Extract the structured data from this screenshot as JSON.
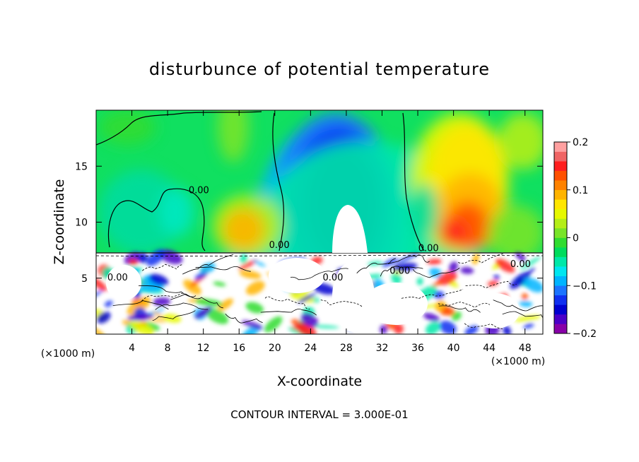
{
  "chart_data": {
    "type": "heatmap",
    "title": "disturbunce of potential temperature",
    "xlabel": "X-coordinate",
    "ylabel": "Z-coordinate",
    "x_unit_left": "(×1000 m)",
    "x_unit_right": "(×1000 m)",
    "xlim": [
      0,
      50
    ],
    "ylim": [
      0,
      20
    ],
    "xticks": [
      4,
      8,
      12,
      16,
      20,
      24,
      28,
      32,
      36,
      40,
      44,
      48
    ],
    "yticks": [
      5,
      10,
      15
    ],
    "colorbar": {
      "range": [
        -0.2,
        0.2
      ],
      "ticks": [
        {
          "value": 0.2,
          "label": "0.2"
        },
        {
          "value": 0.1,
          "label": "0.1"
        },
        {
          "value": 0,
          "label": "0"
        },
        {
          "value": -0.1,
          "label": "−0.1"
        },
        {
          "value": -0.2,
          "label": "−0.2"
        }
      ],
      "colors": [
        "#8800a8",
        "#4b00c8",
        "#0000d0",
        "#1030f0",
        "#1c74ff",
        "#00b4ff",
        "#00e6f0",
        "#00e8a8",
        "#00dc5c",
        "#30dc30",
        "#78e428",
        "#b4ee18",
        "#e6f800",
        "#ffe600",
        "#ffb400",
        "#ff8200",
        "#ff5000",
        "#ff1e1e",
        "#f06464",
        "#ffa0a0"
      ]
    },
    "contour_labels": [
      {
        "text": "0.00",
        "x": 11.5,
        "z": 12.6
      },
      {
        "text": "0.00",
        "x": 20.5,
        "z": 7.7
      },
      {
        "text": "0.00",
        "x": 37.2,
        "z": 7.4
      },
      {
        "text": "0.00",
        "x": 34.0,
        "z": 5.4
      },
      {
        "text": "0.00",
        "x": 26.5,
        "z": 4.8
      },
      {
        "text": "0.00",
        "x": 2.4,
        "z": 4.8
      },
      {
        "text": "0.00",
        "x": 47.5,
        "z": 6.0
      }
    ],
    "grid": false,
    "legend": "colorbar-right"
  },
  "footer": {
    "contour_interval": "CONTOUR INTERVAL = 3.000E-01"
  }
}
